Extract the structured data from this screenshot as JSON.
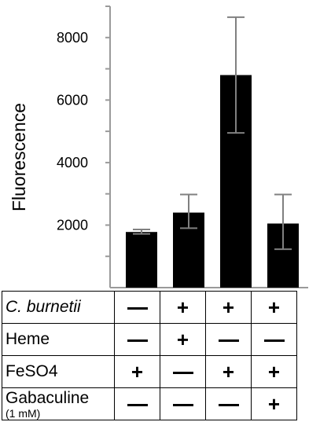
{
  "chart_data": {
    "type": "bar",
    "title": "",
    "ylabel": "Fluorescence",
    "xlabel": "",
    "ylim": [
      0,
      9000
    ],
    "yticks": [
      2000,
      4000,
      6000,
      8000
    ],
    "ytick_labels": [
      "2000",
      "4000",
      "6000",
      "8000"
    ],
    "values": [
      1780,
      2400,
      6800,
      2050
    ],
    "error_low": [
      1720,
      1900,
      4950,
      1230
    ],
    "error_high": [
      1860,
      2980,
      8650,
      2980
    ],
    "bar_color": "#000000",
    "error_color": "#808080",
    "axis_color": "#9a9a9a",
    "grid": false,
    "legend": "none"
  },
  "conditions": {
    "rows": [
      {
        "label": "C. burnetii",
        "sublabel": "",
        "values": [
          "-",
          "+",
          "+",
          "+"
        ]
      },
      {
        "label": "Heme",
        "sublabel": "",
        "values": [
          "-",
          "+",
          "-",
          "-"
        ]
      },
      {
        "label": "FeSO4",
        "sublabel": "",
        "values": [
          "+",
          "-",
          "+",
          "+"
        ]
      },
      {
        "label": "Gabaculine",
        "sublabel": "(1 mM)",
        "values": [
          "-",
          "-",
          "-",
          "+"
        ]
      }
    ]
  }
}
